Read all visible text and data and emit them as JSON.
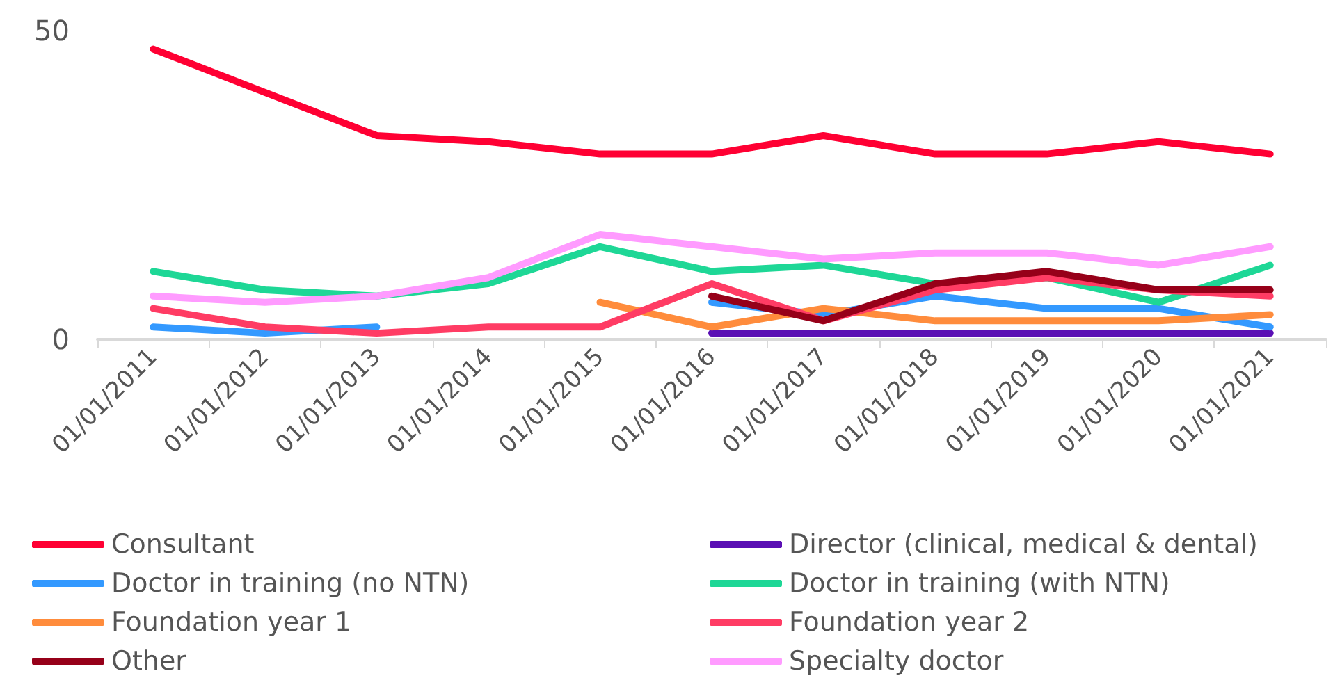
{
  "chart_data": {
    "type": "line",
    "categories": [
      "01/01/2011",
      "01/01/2012",
      "01/01/2013",
      "01/01/2014",
      "01/01/2015",
      "01/01/2016",
      "01/01/2017",
      "01/01/2018",
      "01/01/2019",
      "01/01/2020",
      "01/01/2021"
    ],
    "series": [
      {
        "name": "Consultant",
        "color": "#ff0033",
        "values": [
          47,
          40,
          33,
          32,
          30,
          30,
          33,
          30,
          30,
          32,
          30
        ]
      },
      {
        "name": "Director (clinical, medical & dental)",
        "color": "#5a0fb4",
        "values": [
          null,
          null,
          null,
          null,
          null,
          1,
          1,
          1,
          1,
          1,
          1
        ]
      },
      {
        "name": "Doctor in training (no NTN)",
        "color": "#3399ff",
        "values": [
          2,
          1,
          2,
          null,
          null,
          6,
          4,
          7,
          5,
          5,
          2
        ]
      },
      {
        "name": "Doctor in training (with NTN)",
        "color": "#1ed796",
        "values": [
          11,
          8,
          7,
          9,
          15,
          11,
          12,
          9,
          10,
          6,
          12
        ]
      },
      {
        "name": "Foundation year 1",
        "color": "#ff8c3c",
        "values": [
          null,
          null,
          null,
          null,
          6,
          2,
          5,
          3,
          3,
          3,
          4
        ]
      },
      {
        "name": "Foundation year 2",
        "color": "#ff3c64",
        "values": [
          5,
          2,
          1,
          2,
          2,
          9,
          3,
          8,
          10,
          8,
          7
        ]
      },
      {
        "name": "Other",
        "color": "#960019",
        "values": [
          null,
          null,
          null,
          null,
          null,
          7,
          3,
          9,
          11,
          8,
          8
        ]
      },
      {
        "name": "Specialty doctor",
        "color": "#ff9bff",
        "values": [
          7,
          6,
          7,
          10,
          17,
          15,
          13,
          14,
          14,
          12,
          15
        ]
      }
    ],
    "ylim": [
      0,
      50
    ],
    "yticks": [
      0,
      50
    ],
    "grid": false,
    "legend": "bottom",
    "marker": "none",
    "line_style": "solid"
  }
}
